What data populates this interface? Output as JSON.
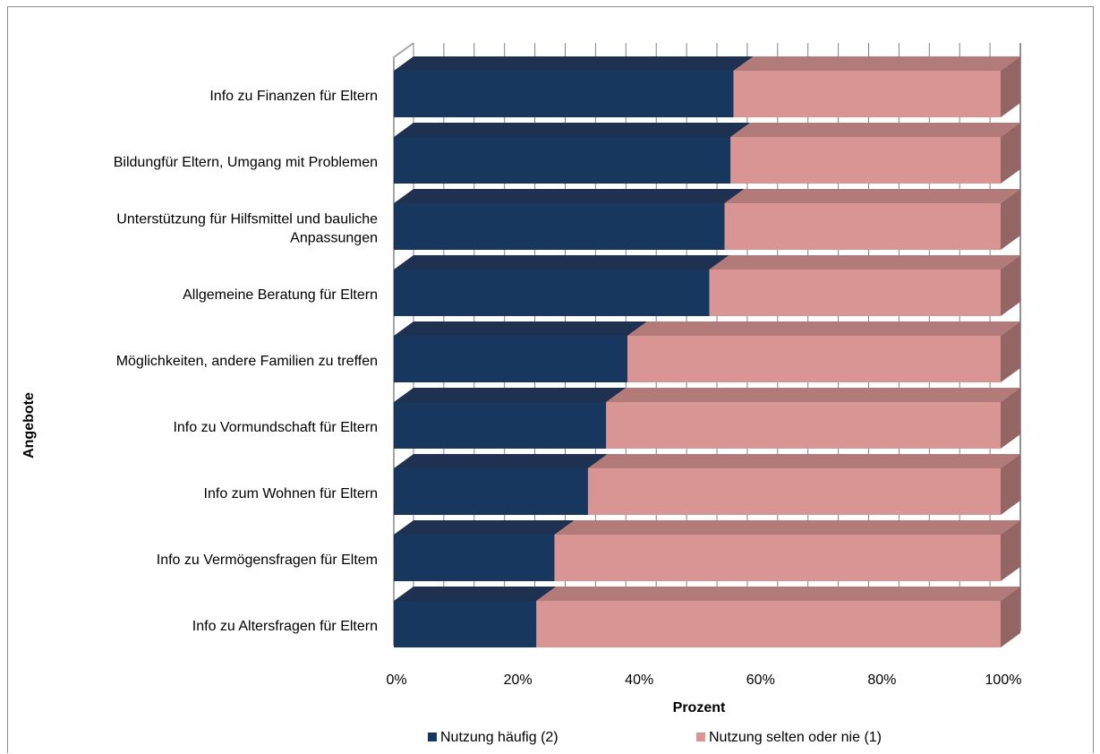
{
  "chart_data": {
    "type": "bar",
    "orientation": "horizontal",
    "stacked": "percent",
    "three_d": true,
    "categories": [
      "Info  zu Finanzen für Eltern",
      "Bildungfür Eltern, Umgang mit Problemen",
      "Unterstützung für Hilfsmittel und bauliche Anpassungen",
      "Allgemeine Beratung für Eltern",
      "Möglichkeiten, andere Familien zu treffen",
      "Info zu Vormundschaft für Eltern",
      "Info zum Wohnen für Eltern",
      "Info zu Vermögensfragen für Eltem",
      "Info zu Altersfragen für Eltern"
    ],
    "category_label_lines": [
      [
        "Info  zu Finanzen für Eltern"
      ],
      [
        "Bildungfür Eltern, Umgang mit Problemen"
      ],
      [
        "Unterstützung für Hilfsmittel und bauliche",
        "Anpassungen"
      ],
      [
        "Allgemeine Beratung für Eltern"
      ],
      [
        "Möglichkeiten, andere Familien zu treffen"
      ],
      [
        "Info zu Vormundschaft für Eltern"
      ],
      [
        "Info zum Wohnen für Eltern"
      ],
      [
        "Info zu Vermögensfragen für Eltem"
      ],
      [
        "Info zu Altersfragen für Eltern"
      ]
    ],
    "series": [
      {
        "name": "Nutzung häufig (2)",
        "color": "#17375e",
        "values": [
          56,
          55.5,
          54.5,
          52,
          38.5,
          35,
          32,
          26.5,
          23.5
        ]
      },
      {
        "name": "Nutzung selten oder nie (1)",
        "color": "#d99594",
        "values": [
          44,
          44.5,
          45.5,
          48,
          61.5,
          65,
          68,
          73.5,
          76.5
        ]
      }
    ],
    "x_ticks": [
      "0%",
      "20%",
      "40%",
      "60%",
      "80%",
      "100%"
    ],
    "xlim": [
      0,
      100
    ],
    "xlabel": "Prozent",
    "ylabel": "Angebote",
    "grid": true,
    "legend_position": "bottom"
  }
}
